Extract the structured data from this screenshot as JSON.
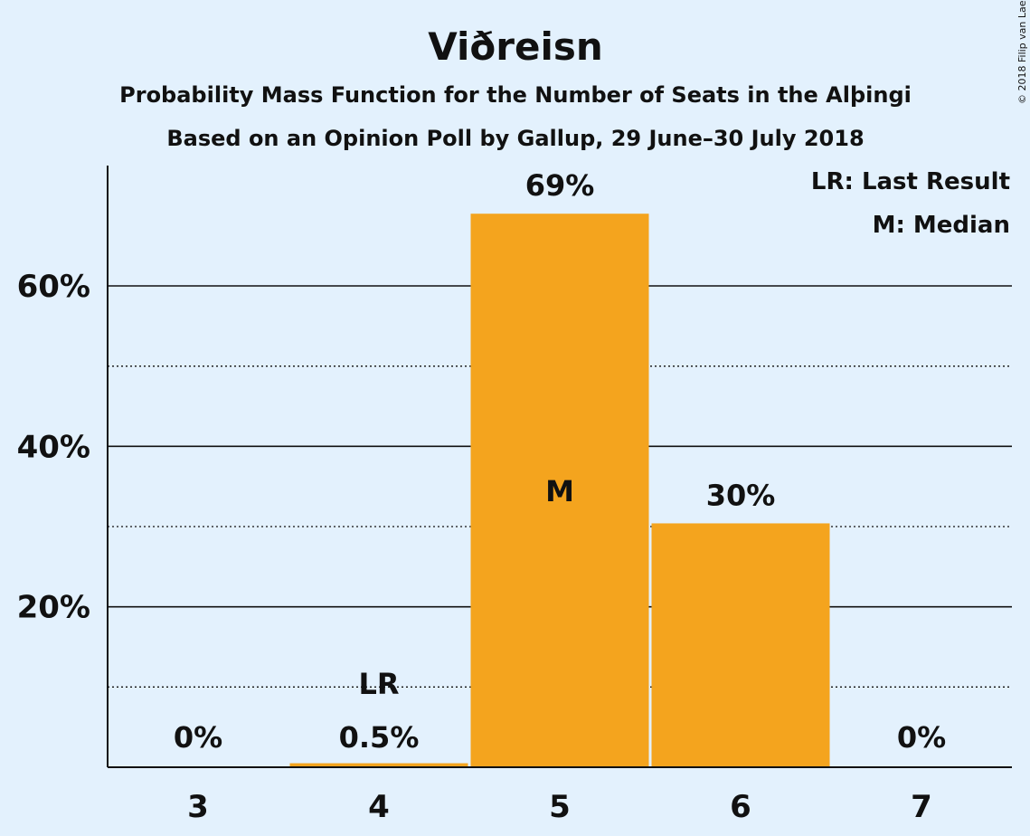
{
  "chart_data": {
    "type": "bar",
    "title": "Viðreisn",
    "subtitle1": "Probability Mass Function for the Number of Seats in the Alþingi",
    "subtitle2": "Based on an Opinion Poll by Gallup, 29 June–30 July 2018",
    "copyright": "© 2018 Filip van Laenen",
    "categories": [
      "3",
      "4",
      "5",
      "6",
      "7"
    ],
    "values": [
      0,
      0.5,
      69,
      30.4,
      0
    ],
    "value_labels": [
      "0%",
      "0.5%",
      "69%",
      "30%",
      "0%"
    ],
    "y_ticks": [
      20,
      40,
      60
    ],
    "y_tick_labels": [
      "20%",
      "40%",
      "60%"
    ],
    "minor_gridlines": [
      10,
      30,
      50
    ],
    "ylim": [
      0,
      75
    ],
    "bar_color": "#f4a41e",
    "markers": [
      {
        "category": "4",
        "text": "LR"
      },
      {
        "category": "5",
        "text": "M"
      }
    ],
    "legend": [
      "LR: Last Result",
      "M: Median"
    ],
    "legend_position": "top-right"
  }
}
